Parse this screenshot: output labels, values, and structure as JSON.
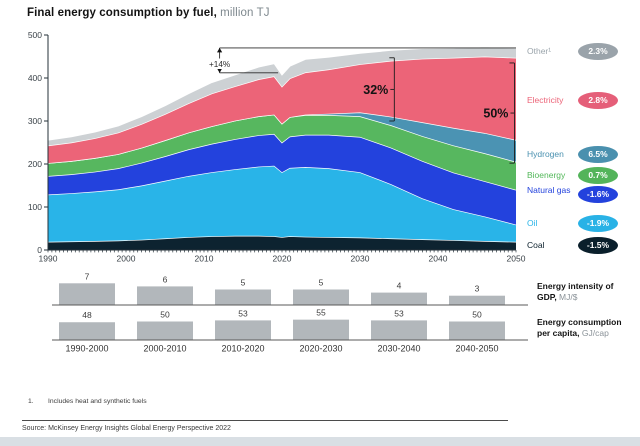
{
  "page": {
    "title_main": "Final energy consumption by fuel,",
    "title_unit": " million TJ",
    "footnote_number": "1.",
    "footnote_text": "Includes heat and synthetic fuels",
    "source": "Source: McKinsey Energy Insights Global Energy Perspective 2022"
  },
  "side_labels": {
    "row1_bold": "Energy intensity of GDP,",
    "row1_unit": " MJ/$",
    "row2_bold": "Energy consumption per capita,",
    "row2_unit": " GJ/cap"
  },
  "legend": {
    "items": [
      {
        "label": "Other¹",
        "badge": "2.3%",
        "color": "#9aa4ab",
        "badge_color": "#9aa3aa"
      },
      {
        "label": "Electricity",
        "badge": "2.8%",
        "color": "#ec6478",
        "badge_color": "#e55f79"
      },
      {
        "label": "Hydrogen",
        "badge": "6.5%",
        "color": "#4a91b0",
        "badge_color": "#4a90ae"
      },
      {
        "label": "Bioenergy",
        "badge": "0.7%",
        "color": "#53b85a",
        "badge_color": "#53b45a"
      },
      {
        "label": "Natural gas",
        "badge": "-1.6%",
        "color": "#2342dd",
        "badge_color": "#2342dd"
      },
      {
        "label": "Oil",
        "badge": "-1.9%",
        "color": "#29b4e8",
        "badge_color": "#29b2e6"
      },
      {
        "label": "Coal",
        "badge": "-1.5%",
        "color": "#0a1f2b",
        "badge_color": "#0a1f2b"
      }
    ]
  },
  "chart_data": [
    {
      "type": "area",
      "title": "Final energy consumption by fuel, million TJ",
      "stacked": true,
      "x": [
        1990,
        1993,
        1996,
        1999,
        2002,
        2005,
        2008,
        2011,
        2014,
        2017,
        2019,
        2020,
        2021,
        2023,
        2026,
        2030,
        2034,
        2038,
        2042,
        2046,
        2050
      ],
      "x_ticks": [
        1990,
        2000,
        2010,
        2020,
        2030,
        2040,
        2050
      ],
      "y_ticks": [
        0,
        100,
        200,
        300,
        400,
        500
      ],
      "ylim": [
        0,
        500
      ],
      "xlim": [
        1990,
        2050
      ],
      "series": [
        {
          "name": "Coal",
          "color": "#0d2330",
          "values": [
            19,
            20,
            21,
            22,
            24,
            27,
            30,
            32,
            33,
            33,
            32,
            30,
            32,
            31,
            30,
            29,
            27,
            25,
            23,
            21,
            19
          ]
        },
        {
          "name": "Oil",
          "color": "#29b4e8",
          "values": [
            110,
            112,
            115,
            119,
            126,
            134,
            142,
            149,
            155,
            161,
            164,
            151,
            159,
            162,
            160,
            152,
            126,
            95,
            72,
            57,
            40
          ]
        },
        {
          "name": "Natural gas",
          "color": "#2342dd",
          "values": [
            43,
            44,
            46,
            49,
            53,
            57,
            62,
            66,
            70,
            73,
            74,
            69,
            73,
            75,
            78,
            82,
            85,
            87,
            85,
            82,
            81
          ]
        },
        {
          "name": "Bioenergy",
          "color": "#57b75f",
          "values": [
            30,
            31,
            32,
            33,
            35,
            37,
            39,
            41,
            43,
            44,
            45,
            44,
            45,
            46,
            46,
            48,
            52,
            58,
            63,
            65,
            65
          ]
        },
        {
          "name": "Hydrogen",
          "color": "#4b93b3",
          "values": [
            0,
            0,
            0,
            0,
            0,
            0,
            0,
            0,
            0,
            0,
            0,
            0,
            0,
            1,
            3,
            9,
            20,
            32,
            41,
            47,
            51
          ]
        },
        {
          "name": "Electricity",
          "color": "#ec6478",
          "values": [
            41,
            43,
            46,
            50,
            55,
            61,
            68,
            76,
            80,
            86,
            89,
            86,
            90,
            98,
            103,
            112,
            130,
            148,
            163,
            178,
            191
          ]
        },
        {
          "name": "Other",
          "color": "#cdd1d4",
          "values": [
            13,
            14,
            15,
            16,
            18,
            20,
            23,
            26,
            27,
            29,
            30,
            28,
            29,
            31,
            29,
            26,
            25,
            24,
            23,
            23,
            23
          ]
        }
      ],
      "annotations": [
        {
          "id": "growth-arrow",
          "label": "+14%",
          "x_year": 2012,
          "value_top": 470,
          "value_bottom": 412,
          "top_line_to_year": 2050,
          "bottom_line_to_year": 2019.5
        },
        {
          "id": "share-2035",
          "label": "32%",
          "x_year": 2034.4,
          "value_top": 447,
          "value_bottom": 300
        },
        {
          "id": "share-2050",
          "label": "50%",
          "x_year": 2049.8,
          "value_top": 435,
          "value_bottom": 202
        }
      ],
      "legend_position": "right",
      "grid": false
    },
    {
      "type": "bar",
      "title": "Energy intensity of GDP, MJ/$",
      "categories": [
        "1990-2000",
        "2000-2010",
        "2010-2020",
        "2020-2030",
        "2030-2040",
        "2040-2050"
      ],
      "values": [
        7,
        6,
        5,
        5,
        4,
        3
      ],
      "bar_color": "#b2b7bb"
    },
    {
      "type": "bar",
      "title": "Energy consumption per capita, GJ/cap",
      "categories": [
        "1990-2000",
        "2000-2010",
        "2010-2020",
        "2020-2030",
        "2030-2040",
        "2040-2050"
      ],
      "values": [
        48,
        50,
        53,
        55,
        53,
        50
      ],
      "bar_color": "#b2b7bb"
    }
  ]
}
